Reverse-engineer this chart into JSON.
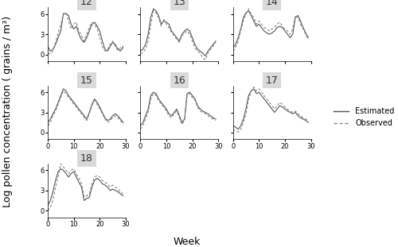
{
  "panels": [
    12,
    13,
    14,
    15,
    16,
    17,
    18
  ],
  "xlim": [
    0,
    30
  ],
  "ylim": [
    -1,
    7
  ],
  "yticks": [
    0,
    3,
    6
  ],
  "xticks": [
    0,
    10,
    20,
    30
  ],
  "xlabel": "Week",
  "ylabel": "Log pollen concentration ( grains / m³)",
  "legend_labels": [
    "Estimated",
    "Observed"
  ],
  "line_color_estimated": "#555555",
  "line_color_observed": "#888888",
  "panel_bg": "#d9d9d9",
  "panel_title_fontsize": 9,
  "axis_fontsize": 8,
  "label_fontsize": 9,
  "estimated_12": [
    1.2,
    0.5,
    0.8,
    1.5,
    2.5,
    3.5,
    6.0,
    6.1,
    5.8,
    4.5,
    3.8,
    4.2,
    3.0,
    2.2,
    1.8,
    2.5,
    3.5,
    4.5,
    4.8,
    4.2,
    3.5,
    2.0,
    0.8,
    0.5,
    1.2,
    1.8,
    1.5,
    0.8,
    0.5,
    1.2
  ],
  "observed_12": [
    0.2,
    0.1,
    0.5,
    1.8,
    3.2,
    4.5,
    6.1,
    6.2,
    5.0,
    3.8,
    4.5,
    4.8,
    3.5,
    2.8,
    2.0,
    3.0,
    4.0,
    4.8,
    4.5,
    3.8,
    2.5,
    1.2,
    0.5,
    0.8,
    1.5,
    2.0,
    1.2,
    0.6,
    1.0,
    0.8
  ],
  "estimated_13": [
    0.5,
    0.8,
    1.5,
    3.0,
    5.5,
    6.8,
    6.5,
    5.8,
    4.5,
    5.0,
    4.8,
    4.5,
    3.5,
    3.0,
    2.5,
    2.0,
    3.0,
    3.5,
    3.8,
    3.5,
    2.5,
    1.5,
    0.8,
    0.5,
    0.2,
    -0.2,
    0.5,
    1.0,
    1.5,
    2.0
  ],
  "observed_13": [
    0.1,
    0.3,
    0.8,
    2.0,
    4.5,
    6.5,
    6.2,
    5.5,
    4.2,
    5.2,
    4.5,
    4.0,
    3.2,
    2.8,
    2.2,
    1.8,
    2.8,
    3.2,
    3.5,
    3.0,
    2.0,
    1.0,
    0.5,
    0.2,
    -0.5,
    -0.8,
    0.2,
    0.8,
    1.2,
    1.8
  ],
  "estimated_14": [
    1.0,
    1.5,
    2.5,
    3.8,
    5.5,
    6.2,
    6.5,
    5.8,
    5.0,
    4.2,
    4.5,
    4.0,
    3.5,
    3.2,
    3.0,
    3.2,
    3.5,
    4.0,
    4.2,
    4.0,
    3.5,
    3.0,
    2.5,
    3.0,
    5.5,
    5.8,
    5.0,
    4.0,
    3.2,
    2.5
  ],
  "observed_14": [
    0.5,
    1.0,
    2.0,
    3.5,
    5.0,
    6.0,
    6.8,
    6.0,
    5.5,
    4.5,
    5.0,
    4.5,
    4.0,
    3.8,
    3.5,
    3.8,
    4.0,
    4.5,
    4.8,
    4.2,
    3.8,
    3.5,
    3.0,
    3.8,
    5.8,
    5.5,
    4.5,
    3.8,
    3.0,
    2.2
  ],
  "estimated_15": [
    1.5,
    2.0,
    2.8,
    3.5,
    4.5,
    5.5,
    6.5,
    6.2,
    5.5,
    5.0,
    4.5,
    4.0,
    3.5,
    3.0,
    2.5,
    2.0,
    3.0,
    4.2,
    5.0,
    4.5,
    3.8,
    3.0,
    2.2,
    1.8,
    2.0,
    2.5,
    2.8,
    2.5,
    2.0,
    1.5
  ],
  "observed_15": [
    1.0,
    1.5,
    2.5,
    3.2,
    4.2,
    5.2,
    6.2,
    5.8,
    5.2,
    4.8,
    4.2,
    3.8,
    3.2,
    2.8,
    2.2,
    1.8,
    2.8,
    4.0,
    4.8,
    4.2,
    3.5,
    2.8,
    2.0,
    1.5,
    1.8,
    2.2,
    2.5,
    2.2,
    1.8,
    1.2
  ],
  "estimated_16": [
    1.0,
    1.5,
    2.5,
    3.5,
    5.5,
    6.0,
    5.8,
    5.0,
    4.5,
    4.0,
    3.5,
    2.8,
    2.5,
    3.0,
    3.5,
    2.5,
    1.5,
    2.0,
    5.8,
    6.0,
    5.5,
    5.0,
    4.0,
    3.5,
    3.2,
    3.0,
    2.8,
    2.5,
    2.2,
    2.0
  ],
  "observed_16": [
    0.5,
    1.0,
    2.0,
    3.0,
    5.0,
    5.8,
    5.5,
    4.8,
    4.2,
    3.8,
    3.2,
    2.5,
    2.2,
    2.8,
    3.2,
    2.2,
    1.2,
    1.8,
    5.5,
    5.8,
    5.2,
    4.8,
    3.8,
    3.2,
    3.0,
    2.8,
    2.5,
    2.2,
    2.0,
    1.8
  ],
  "estimated_17": [
    1.0,
    0.8,
    0.5,
    1.0,
    2.0,
    3.5,
    5.5,
    6.2,
    6.5,
    5.8,
    6.0,
    5.5,
    5.0,
    4.5,
    4.0,
    3.5,
    3.0,
    3.5,
    4.0,
    3.8,
    3.5,
    3.2,
    3.0,
    2.8,
    3.0,
    2.5,
    2.2,
    2.0,
    1.8,
    1.5
  ],
  "observed_17": [
    0.5,
    0.2,
    0.1,
    0.5,
    1.5,
    2.8,
    5.0,
    6.0,
    6.8,
    6.2,
    6.5,
    6.0,
    5.5,
    5.0,
    4.5,
    4.0,
    3.5,
    4.0,
    4.5,
    4.2,
    3.8,
    3.5,
    3.2,
    3.0,
    3.2,
    2.8,
    2.5,
    2.2,
    2.0,
    1.8
  ],
  "estimated_18": [
    0.8,
    1.5,
    2.8,
    4.5,
    5.8,
    6.2,
    6.0,
    5.5,
    5.0,
    5.5,
    5.8,
    5.0,
    4.2,
    3.5,
    1.5,
    1.8,
    2.0,
    3.5,
    4.5,
    4.8,
    4.5,
    4.0,
    3.8,
    3.5,
    3.0,
    3.2,
    3.0,
    2.8,
    2.5,
    2.2
  ],
  "observed_18": [
    0.0,
    0.5,
    1.5,
    3.5,
    5.0,
    7.0,
    6.5,
    6.0,
    5.5,
    6.0,
    6.2,
    5.5,
    4.8,
    4.0,
    2.0,
    2.2,
    2.5,
    4.0,
    5.0,
    5.2,
    5.0,
    4.5,
    4.2,
    4.0,
    3.5,
    3.8,
    3.5,
    3.2,
    2.8,
    2.5
  ]
}
